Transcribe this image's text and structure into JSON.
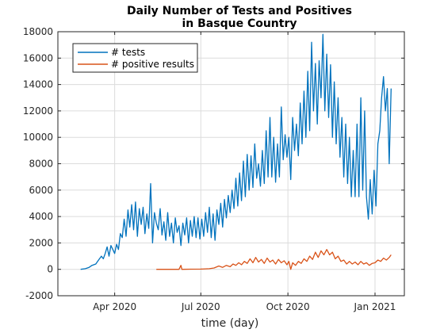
{
  "chart_data": {
    "type": "line",
    "title": [
      "Daily Number of Tests and Positives",
      "in Basque Country"
    ],
    "xlabel": "time (day)",
    "ylabel": "",
    "ylim": [
      -2000,
      18000
    ],
    "yticks": [
      -2000,
      0,
      2000,
      4000,
      6000,
      8000,
      10000,
      12000,
      14000,
      16000,
      18000
    ],
    "xlim": [
      "2020-02-01",
      "2021-02-01"
    ],
    "xticks": [
      {
        "date": "2020-04-01",
        "label": "Apr 2020"
      },
      {
        "date": "2020-07-01",
        "label": "Jul 2020"
      },
      {
        "date": "2020-10-01",
        "label": "Oct 2020"
      },
      {
        "date": "2021-01-01",
        "label": "Jan 2021"
      }
    ],
    "grid": true,
    "legend": "top-left",
    "series": [
      {
        "name": "# tests",
        "color": "#0072BD",
        "points": [
          [
            "2020-02-25",
            0
          ],
          [
            "2020-03-01",
            50
          ],
          [
            "2020-03-05",
            150
          ],
          [
            "2020-03-08",
            300
          ],
          [
            "2020-03-12",
            400
          ],
          [
            "2020-03-15",
            700
          ],
          [
            "2020-03-18",
            1000
          ],
          [
            "2020-03-20",
            800
          ],
          [
            "2020-03-22",
            1200
          ],
          [
            "2020-03-24",
            1700
          ],
          [
            "2020-03-26",
            1000
          ],
          [
            "2020-03-28",
            1800
          ],
          [
            "2020-03-30",
            1500
          ],
          [
            "2020-04-01",
            1200
          ],
          [
            "2020-04-03",
            1900
          ],
          [
            "2020-04-05",
            1500
          ],
          [
            "2020-04-07",
            2700
          ],
          [
            "2020-04-09",
            2400
          ],
          [
            "2020-04-11",
            3800
          ],
          [
            "2020-04-13",
            2500
          ],
          [
            "2020-04-15",
            4500
          ],
          [
            "2020-04-17",
            3200
          ],
          [
            "2020-04-19",
            4900
          ],
          [
            "2020-04-21",
            3000
          ],
          [
            "2020-04-23",
            5100
          ],
          [
            "2020-04-25",
            2500
          ],
          [
            "2020-04-27",
            4600
          ],
          [
            "2020-04-29",
            3400
          ],
          [
            "2020-05-01",
            4700
          ],
          [
            "2020-05-03",
            2700
          ],
          [
            "2020-05-05",
            4200
          ],
          [
            "2020-05-07",
            3100
          ],
          [
            "2020-05-09",
            6500
          ],
          [
            "2020-05-11",
            2000
          ],
          [
            "2020-05-13",
            4300
          ],
          [
            "2020-05-15",
            3500
          ],
          [
            "2020-05-17",
            3000
          ],
          [
            "2020-05-19",
            4600
          ],
          [
            "2020-05-21",
            2600
          ],
          [
            "2020-05-23",
            3600
          ],
          [
            "2020-05-25",
            2200
          ],
          [
            "2020-05-27",
            4300
          ],
          [
            "2020-05-29",
            2500
          ],
          [
            "2020-05-31",
            3500
          ],
          [
            "2020-06-02",
            2000
          ],
          [
            "2020-06-04",
            3900
          ],
          [
            "2020-06-06",
            2800
          ],
          [
            "2020-06-08",
            3300
          ],
          [
            "2020-06-10",
            1800
          ],
          [
            "2020-06-12",
            3500
          ],
          [
            "2020-06-14",
            2600
          ],
          [
            "2020-06-16",
            3900
          ],
          [
            "2020-06-18",
            2000
          ],
          [
            "2020-06-20",
            3700
          ],
          [
            "2020-06-22",
            2500
          ],
          [
            "2020-06-24",
            4000
          ],
          [
            "2020-06-26",
            2400
          ],
          [
            "2020-06-28",
            3900
          ],
          [
            "2020-06-30",
            2300
          ],
          [
            "2020-07-02",
            3800
          ],
          [
            "2020-07-04",
            2500
          ],
          [
            "2020-07-06",
            4300
          ],
          [
            "2020-07-08",
            2800
          ],
          [
            "2020-07-10",
            4700
          ],
          [
            "2020-07-12",
            2400
          ],
          [
            "2020-07-14",
            4200
          ],
          [
            "2020-07-16",
            2200
          ],
          [
            "2020-07-18",
            4500
          ],
          [
            "2020-07-20",
            3400
          ],
          [
            "2020-07-22",
            5000
          ],
          [
            "2020-07-24",
            3200
          ],
          [
            "2020-07-26",
            5300
          ],
          [
            "2020-07-28",
            3900
          ],
          [
            "2020-07-30",
            5600
          ],
          [
            "2020-08-01",
            4300
          ],
          [
            "2020-08-03",
            6000
          ],
          [
            "2020-08-05",
            4600
          ],
          [
            "2020-08-07",
            6900
          ],
          [
            "2020-08-09",
            4800
          ],
          [
            "2020-08-11",
            7300
          ],
          [
            "2020-08-13",
            5200
          ],
          [
            "2020-08-15",
            8200
          ],
          [
            "2020-08-17",
            5500
          ],
          [
            "2020-08-19",
            8700
          ],
          [
            "2020-08-21",
            6000
          ],
          [
            "2020-08-23",
            8600
          ],
          [
            "2020-08-25",
            6200
          ],
          [
            "2020-08-27",
            9500
          ],
          [
            "2020-08-29",
            6900
          ],
          [
            "2020-08-31",
            8000
          ],
          [
            "2020-09-02",
            6300
          ],
          [
            "2020-09-04",
            9000
          ],
          [
            "2020-09-06",
            6500
          ],
          [
            "2020-09-08",
            10500
          ],
          [
            "2020-09-10",
            7000
          ],
          [
            "2020-09-12",
            11500
          ],
          [
            "2020-09-14",
            7000
          ],
          [
            "2020-09-16",
            10000
          ],
          [
            "2020-09-18",
            6600
          ],
          [
            "2020-09-20",
            9500
          ],
          [
            "2020-09-22",
            7000
          ],
          [
            "2020-09-24",
            12300
          ],
          [
            "2020-09-26",
            8300
          ],
          [
            "2020-09-28",
            10200
          ],
          [
            "2020-09-30",
            8500
          ],
          [
            "2020-10-02",
            10000
          ],
          [
            "2020-10-04",
            6800
          ],
          [
            "2020-10-06",
            11500
          ],
          [
            "2020-10-08",
            9000
          ],
          [
            "2020-10-10",
            11000
          ],
          [
            "2020-10-12",
            8600
          ],
          [
            "2020-10-14",
            12600
          ],
          [
            "2020-10-16",
            9500
          ],
          [
            "2020-10-18",
            13500
          ],
          [
            "2020-10-20",
            10000
          ],
          [
            "2020-10-22",
            15000
          ],
          [
            "2020-10-24",
            10500
          ],
          [
            "2020-10-26",
            17200
          ],
          [
            "2020-10-28",
            12000
          ],
          [
            "2020-10-30",
            15600
          ],
          [
            "2020-11-01",
            11000
          ],
          [
            "2020-11-03",
            15800
          ],
          [
            "2020-11-05",
            13000
          ],
          [
            "2020-11-07",
            17800
          ],
          [
            "2020-11-09",
            12000
          ],
          [
            "2020-11-11",
            16300
          ],
          [
            "2020-11-13",
            11500
          ],
          [
            "2020-11-15",
            15500
          ],
          [
            "2020-11-17",
            10000
          ],
          [
            "2020-11-19",
            14200
          ],
          [
            "2020-11-21",
            9500
          ],
          [
            "2020-11-23",
            13000
          ],
          [
            "2020-11-25",
            8500
          ],
          [
            "2020-11-27",
            11500
          ],
          [
            "2020-11-29",
            7000
          ],
          [
            "2020-12-01",
            11000
          ],
          [
            "2020-12-03",
            6500
          ],
          [
            "2020-12-05",
            10000
          ],
          [
            "2020-12-07",
            5500
          ],
          [
            "2020-12-09",
            9000
          ],
          [
            "2020-12-11",
            5500
          ],
          [
            "2020-12-13",
            11000
          ],
          [
            "2020-12-15",
            5500
          ],
          [
            "2020-12-17",
            13000
          ],
          [
            "2020-12-19",
            6000
          ],
          [
            "2020-12-21",
            12000
          ],
          [
            "2020-12-23",
            5500
          ],
          [
            "2020-12-25",
            3800
          ],
          [
            "2020-12-27",
            6800
          ],
          [
            "2020-12-29",
            4200
          ],
          [
            "2020-12-31",
            7500
          ],
          [
            "2021-01-02",
            4800
          ],
          [
            "2021-01-04",
            9500
          ],
          [
            "2021-01-06",
            10500
          ],
          [
            "2021-01-08",
            13000
          ],
          [
            "2021-01-10",
            14600
          ],
          [
            "2021-01-12",
            12000
          ],
          [
            "2021-01-14",
            13700
          ],
          [
            "2021-01-16",
            8000
          ],
          [
            "2021-01-18",
            13700
          ]
        ]
      },
      {
        "name": "# positive results",
        "color": "#D95319",
        "points": [
          [
            "2020-05-15",
            0
          ],
          [
            "2020-05-25",
            0
          ],
          [
            "2020-06-05",
            0
          ],
          [
            "2020-06-08",
            0
          ],
          [
            "2020-06-10",
            300
          ],
          [
            "2020-06-11",
            0
          ],
          [
            "2020-06-20",
            10
          ],
          [
            "2020-07-01",
            20
          ],
          [
            "2020-07-10",
            50
          ],
          [
            "2020-07-15",
            100
          ],
          [
            "2020-07-20",
            250
          ],
          [
            "2020-07-24",
            150
          ],
          [
            "2020-07-28",
            300
          ],
          [
            "2020-08-01",
            200
          ],
          [
            "2020-08-04",
            400
          ],
          [
            "2020-08-07",
            300
          ],
          [
            "2020-08-10",
            500
          ],
          [
            "2020-08-13",
            350
          ],
          [
            "2020-08-16",
            600
          ],
          [
            "2020-08-19",
            450
          ],
          [
            "2020-08-22",
            800
          ],
          [
            "2020-08-25",
            500
          ],
          [
            "2020-08-28",
            900
          ],
          [
            "2020-08-31",
            550
          ],
          [
            "2020-09-03",
            750
          ],
          [
            "2020-09-06",
            450
          ],
          [
            "2020-09-09",
            850
          ],
          [
            "2020-09-12",
            550
          ],
          [
            "2020-09-15",
            700
          ],
          [
            "2020-09-18",
            400
          ],
          [
            "2020-09-21",
            750
          ],
          [
            "2020-09-24",
            500
          ],
          [
            "2020-09-27",
            650
          ],
          [
            "2020-09-30",
            350
          ],
          [
            "2020-10-02",
            600
          ],
          [
            "2020-10-04",
            0
          ],
          [
            "2020-10-06",
            500
          ],
          [
            "2020-10-09",
            300
          ],
          [
            "2020-10-12",
            600
          ],
          [
            "2020-10-15",
            450
          ],
          [
            "2020-10-18",
            800
          ],
          [
            "2020-10-21",
            600
          ],
          [
            "2020-10-24",
            1000
          ],
          [
            "2020-10-27",
            750
          ],
          [
            "2020-10-30",
            1300
          ],
          [
            "2020-11-02",
            900
          ],
          [
            "2020-11-05",
            1400
          ],
          [
            "2020-11-08",
            1100
          ],
          [
            "2020-11-11",
            1500
          ],
          [
            "2020-11-14",
            1100
          ],
          [
            "2020-11-17",
            1300
          ],
          [
            "2020-11-20",
            800
          ],
          [
            "2020-11-23",
            1000
          ],
          [
            "2020-11-26",
            600
          ],
          [
            "2020-11-29",
            700
          ],
          [
            "2020-12-02",
            400
          ],
          [
            "2020-12-05",
            600
          ],
          [
            "2020-12-08",
            400
          ],
          [
            "2020-12-11",
            550
          ],
          [
            "2020-12-14",
            350
          ],
          [
            "2020-12-17",
            600
          ],
          [
            "2020-12-20",
            400
          ],
          [
            "2020-12-23",
            500
          ],
          [
            "2020-12-26",
            300
          ],
          [
            "2020-12-29",
            450
          ],
          [
            "2021-01-01",
            500
          ],
          [
            "2021-01-04",
            700
          ],
          [
            "2021-01-07",
            600
          ],
          [
            "2021-01-10",
            850
          ],
          [
            "2021-01-13",
            700
          ],
          [
            "2021-01-16",
            900
          ],
          [
            "2021-01-18",
            1100
          ]
        ]
      }
    ]
  }
}
